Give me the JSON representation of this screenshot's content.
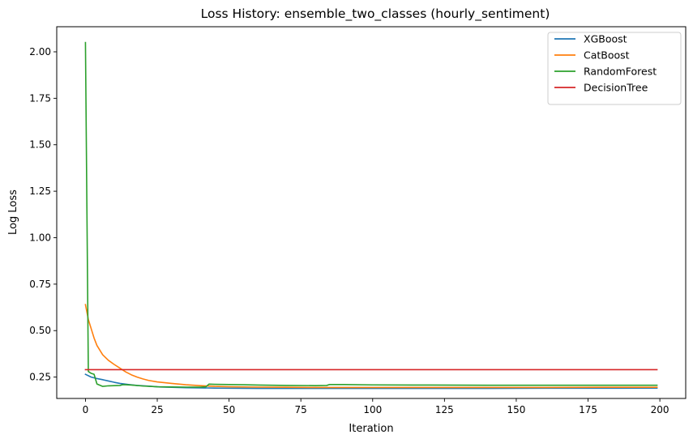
{
  "chart_data": {
    "type": "line",
    "title": "Loss History: ensemble_two_classes (hourly_sentiment)",
    "xlabel": "Iteration",
    "ylabel": "Log Loss",
    "xlim": [
      -10,
      209
    ],
    "ylim": [
      0.135,
      2.135
    ],
    "xticks": [
      0,
      25,
      50,
      75,
      100,
      125,
      150,
      175,
      200
    ],
    "yticks": [
      0.25,
      0.5,
      0.75,
      1.0,
      1.25,
      1.5,
      1.75,
      2.0
    ],
    "grid": false,
    "legend": "top-right",
    "series": [
      {
        "name": "XGBoost",
        "color": "#1f77b4",
        "x": [
          0,
          2,
          4,
          6,
          8,
          10,
          12,
          15,
          18,
          22,
          26,
          30,
          35,
          40,
          45,
          50,
          60,
          70,
          80,
          90,
          100,
          120,
          140,
          160,
          180,
          199
        ],
        "y": [
          0.265,
          0.25,
          0.242,
          0.236,
          0.229,
          0.222,
          0.216,
          0.21,
          0.205,
          0.201,
          0.197,
          0.195,
          0.193,
          0.192,
          0.191,
          0.19,
          0.189,
          0.189,
          0.189,
          0.189,
          0.189,
          0.189,
          0.189,
          0.19,
          0.19,
          0.191
        ]
      },
      {
        "name": "CatBoost",
        "color": "#ff7f0e",
        "x": [
          0,
          1,
          2,
          3,
          4,
          5,
          6,
          8,
          10,
          12,
          14,
          16,
          18,
          20,
          22,
          25,
          30,
          35,
          40,
          45,
          50,
          60,
          70,
          80,
          90,
          100,
          120,
          140,
          160,
          180,
          199
        ],
        "y": [
          0.64,
          0.56,
          0.51,
          0.46,
          0.42,
          0.395,
          0.37,
          0.34,
          0.318,
          0.298,
          0.278,
          0.262,
          0.25,
          0.24,
          0.232,
          0.224,
          0.216,
          0.209,
          0.204,
          0.2,
          0.198,
          0.196,
          0.195,
          0.194,
          0.194,
          0.194,
          0.194,
          0.194,
          0.194,
          0.195,
          0.195
        ]
      },
      {
        "name": "RandomForest",
        "color": "#2ca02c",
        "x": [
          0,
          1,
          2,
          3,
          4,
          6,
          8,
          10,
          12,
          13,
          14,
          16,
          20,
          25,
          30,
          35,
          40,
          42,
          43,
          45,
          50,
          55,
          60,
          70,
          80,
          84,
          85,
          90,
          100,
          120,
          140,
          160,
          180,
          199
        ],
        "y": [
          2.05,
          0.28,
          0.27,
          0.265,
          0.213,
          0.2,
          0.203,
          0.204,
          0.205,
          0.209,
          0.209,
          0.207,
          0.202,
          0.198,
          0.197,
          0.196,
          0.196,
          0.198,
          0.212,
          0.211,
          0.21,
          0.209,
          0.207,
          0.205,
          0.204,
          0.205,
          0.21,
          0.21,
          0.208,
          0.207,
          0.206,
          0.206,
          0.206,
          0.206
        ]
      },
      {
        "name": "DecisionTree",
        "color": "#d62728",
        "x": [
          0,
          199
        ],
        "y": [
          0.29,
          0.29
        ]
      }
    ]
  }
}
